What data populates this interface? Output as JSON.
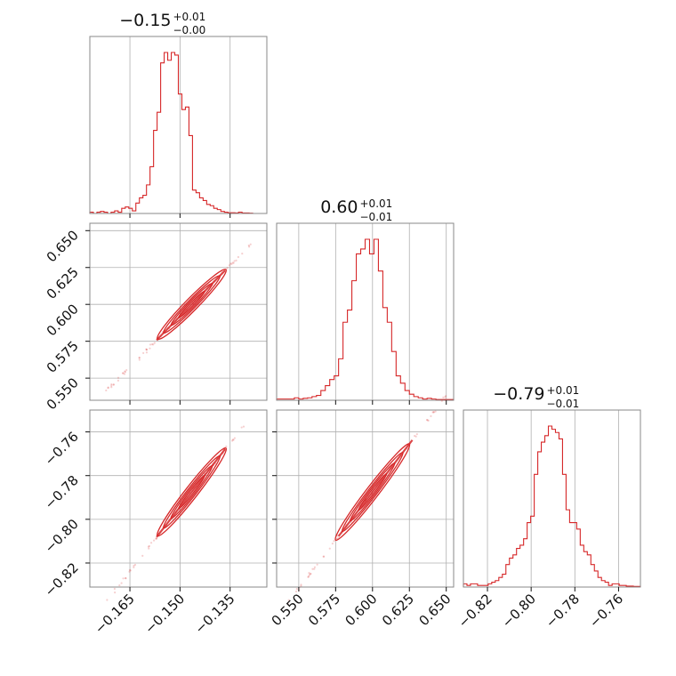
{
  "figure": {
    "type": "corner-plot",
    "color": "#d62728",
    "grid": true
  },
  "chart_data": {
    "type": "corner",
    "titles": [
      {
        "value": "−0.15",
        "plus": "+0.01",
        "minus": "−0.00"
      },
      {
        "value": "0.60",
        "plus": "+0.01",
        "minus": "−0.01"
      },
      {
        "value": "−0.79",
        "plus": "+0.01",
        "minus": "−0.01"
      }
    ],
    "params": [
      {
        "range": [
          -0.177,
          -0.124
        ],
        "ticks": [
          -0.165,
          -0.15,
          -0.135
        ],
        "tick_labels": [
          "−0.165",
          "−0.150",
          "−0.135"
        ]
      },
      {
        "range": [
          0.535,
          0.655
        ],
        "ticks": [
          0.55,
          0.575,
          0.6,
          0.625,
          0.65
        ],
        "tick_labels": [
          "0.550",
          "0.575",
          "0.600",
          "0.625",
          "0.650"
        ]
      },
      {
        "range": [
          -0.831,
          -0.75
        ],
        "ticks": [
          -0.82,
          -0.8,
          -0.78,
          -0.76
        ],
        "tick_labels": [
          "−0.82",
          "−0.80",
          "−0.78",
          "−0.76"
        ]
      }
    ],
    "y_tick_params": {
      "1": {
        "ticks": [
          0.55,
          0.575,
          0.6,
          0.625,
          0.65
        ],
        "tick_labels": [
          "0.550",
          "0.575",
          "0.600",
          "0.625",
          "0.650"
        ]
      },
      "2": {
        "ticks": [
          -0.82,
          -0.8,
          -0.78,
          -0.76
        ],
        "tick_labels": [
          "−0.82",
          "−0.80",
          "−0.78",
          "−0.76"
        ]
      }
    },
    "marginals": [
      {
        "param": 0,
        "bin_edges": [
          -0.177,
          -0.1244
        ],
        "bins": 50,
        "counts": [
          0.005,
          0,
          0.005,
          0.008,
          0.005,
          0,
          0.005,
          0.01,
          0.005,
          0.02,
          0.025,
          0.02,
          0.01,
          0.04,
          0.06,
          0.07,
          0.11,
          0.18,
          0.32,
          0.39,
          0.58,
          0.62,
          0.59,
          0.62,
          0.61,
          0.46,
          0.4,
          0.41,
          0.3,
          0.09,
          0.08,
          0.06,
          0.05,
          0.035,
          0.03,
          0.02,
          0.015,
          0.008,
          0.005,
          0.003,
          0.003,
          0.002,
          0.005,
          0.002,
          0.002,
          0.001,
          0,
          0,
          0,
          0
        ]
      },
      {
        "param": 1,
        "bins": 40,
        "counts": [
          0.005,
          0.005,
          0.005,
          0.005,
          0.01,
          0.005,
          0.008,
          0.01,
          0.015,
          0.02,
          0.04,
          0.06,
          0.085,
          0.1,
          0.17,
          0.32,
          0.37,
          0.49,
          0.6,
          0.62,
          0.66,
          0.6,
          0.66,
          0.53,
          0.38,
          0.32,
          0.2,
          0.1,
          0.07,
          0.04,
          0.025,
          0.015,
          0.01,
          0.005,
          0.008,
          0.005,
          0.003,
          0.003,
          0.003,
          0.003
        ]
      },
      {
        "param": 2,
        "bins": 50,
        "counts": [
          0.01,
          0.005,
          0.01,
          0.01,
          0.005,
          0.005,
          0.005,
          0.01,
          0.015,
          0.02,
          0.03,
          0.04,
          0.07,
          0.09,
          0.1,
          0.12,
          0.13,
          0.15,
          0.2,
          0.22,
          0.35,
          0.42,
          0.45,
          0.47,
          0.5,
          0.49,
          0.48,
          0.46,
          0.35,
          0.24,
          0.2,
          0.2,
          0.18,
          0.13,
          0.11,
          0.1,
          0.07,
          0.05,
          0.03,
          0.02,
          0.015,
          0.005,
          0.01,
          0.01,
          0.005,
          0.005,
          0.003,
          0.003,
          0.002,
          0.002
        ]
      }
    ],
    "pairs": [
      {
        "x_param": 0,
        "y_param": 1,
        "slope": 2.3,
        "center": [
          -0.1465,
          0.6
        ],
        "core_x": [
          -0.157,
          -0.1365
        ],
        "tail_x": [
          -0.172,
          -0.128
        ]
      },
      {
        "x_param": 0,
        "y_param": 2,
        "slope": 1.96,
        "center": [
          -0.1465,
          -0.7875
        ],
        "core_x": [
          -0.157,
          -0.1365
        ],
        "tail_x": [
          -0.172,
          -0.128
        ]
      },
      {
        "x_param": 1,
        "y_param": 2,
        "slope": 0.88,
        "center": [
          0.6,
          -0.7875
        ],
        "core_x": [
          0.577,
          0.627
        ],
        "tail_x": [
          0.538,
          0.651
        ]
      }
    ]
  }
}
